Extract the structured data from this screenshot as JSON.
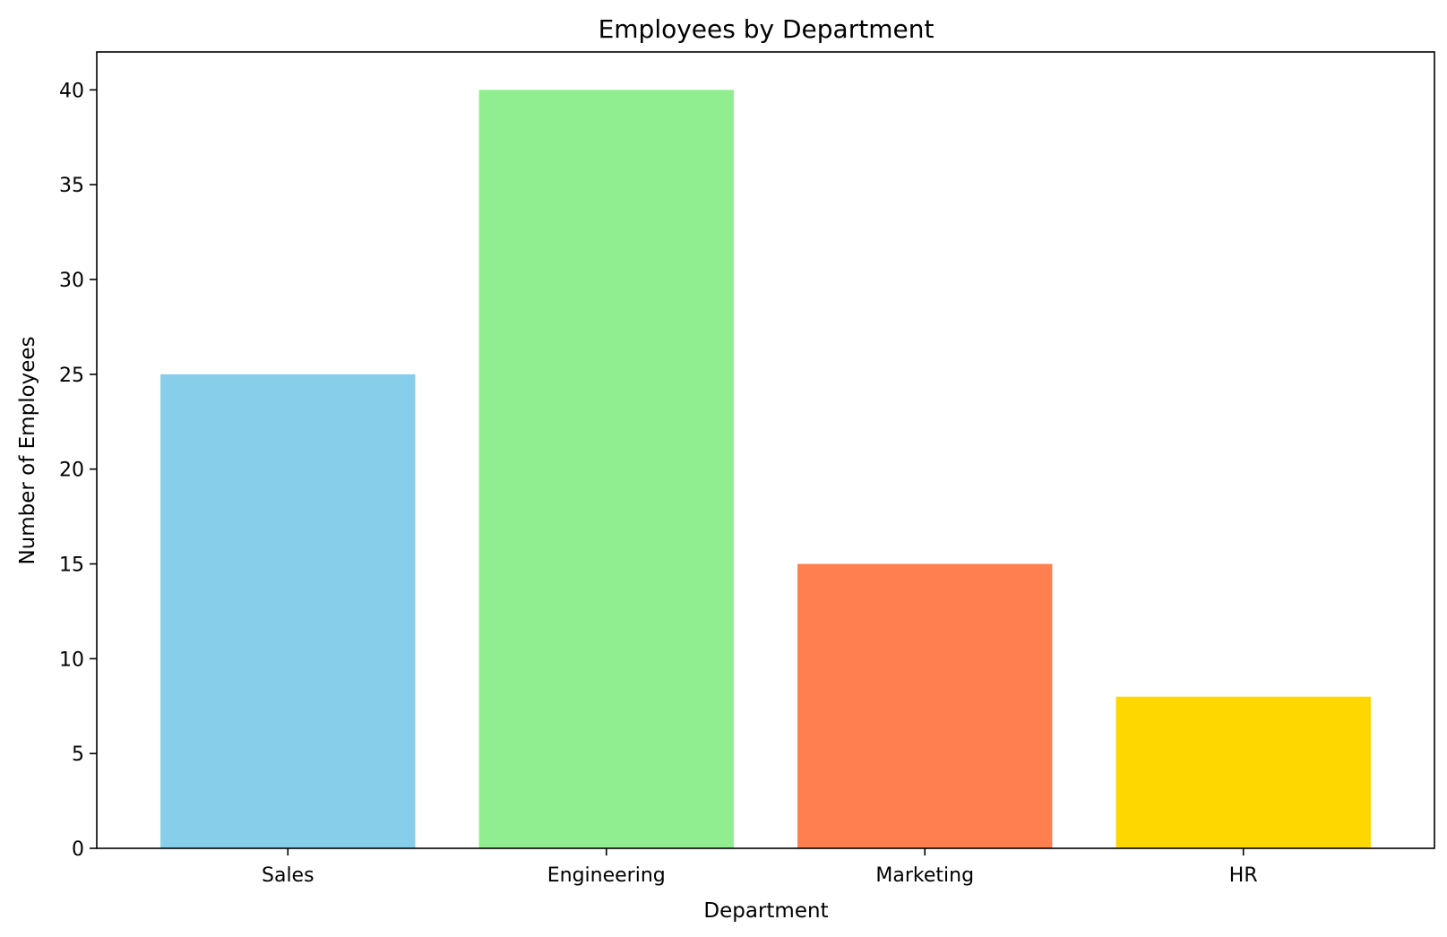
{
  "chart_data": {
    "type": "bar",
    "title": "Employees by Department",
    "xlabel": "Department",
    "ylabel": "Number of Employees",
    "categories": [
      "Sales",
      "Engineering",
      "Marketing",
      "HR"
    ],
    "values": [
      25,
      40,
      15,
      8
    ],
    "colors": [
      "#87CEEB",
      "#90EE90",
      "#FF7F50",
      "#FFD700"
    ],
    "ylim": [
      0,
      42
    ],
    "yticks": [
      0,
      5,
      10,
      15,
      20,
      25,
      30,
      35,
      40
    ],
    "grid": false,
    "legend": "none"
  }
}
